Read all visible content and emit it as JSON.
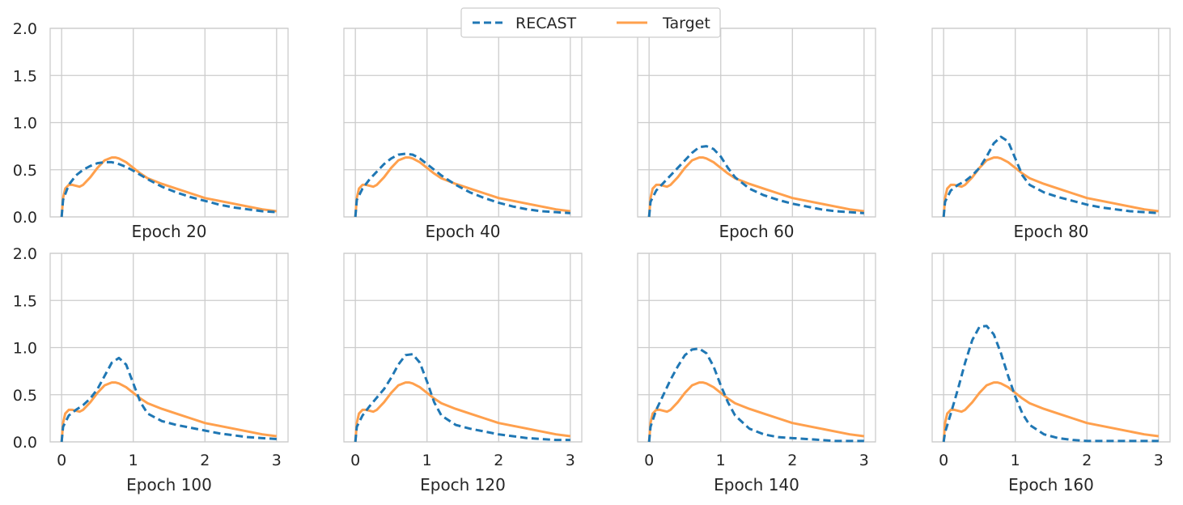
{
  "colors": {
    "recast": "#1f77b4",
    "target": "#ffa04d",
    "grid": "#cccccc",
    "axis_text": "#262626"
  },
  "legend": {
    "items": [
      "RECAST",
      "Target"
    ],
    "placement": "top-center"
  },
  "chart_data": [
    {
      "type": "line",
      "title": "Epoch 20",
      "xlim": [
        0,
        3
      ],
      "ylim": [
        0,
        2
      ],
      "xticks": [
        "0",
        "1",
        "2",
        "3"
      ],
      "yticks": [
        "0.0",
        "0.5",
        "1.0",
        "1.5",
        "2.0"
      ],
      "series": [
        {
          "name": "RECAST",
          "x": [
            0,
            0.02,
            0.1,
            0.2,
            0.3,
            0.4,
            0.5,
            0.6,
            0.7,
            0.8,
            0.9,
            1.0,
            1.2,
            1.4,
            1.6,
            1.8,
            2.0,
            2.2,
            2.4,
            2.6,
            2.8,
            3.0
          ],
          "y": [
            0,
            0.18,
            0.34,
            0.44,
            0.5,
            0.54,
            0.57,
            0.58,
            0.58,
            0.56,
            0.53,
            0.49,
            0.4,
            0.32,
            0.26,
            0.21,
            0.17,
            0.13,
            0.1,
            0.08,
            0.06,
            0.05
          ]
        },
        {
          "name": "Target",
          "x": [
            0,
            0.02,
            0.05,
            0.1,
            0.15,
            0.2,
            0.25,
            0.3,
            0.4,
            0.5,
            0.6,
            0.7,
            0.75,
            0.8,
            0.9,
            1.0,
            1.1,
            1.2,
            1.4,
            1.6,
            1.8,
            2.0,
            2.2,
            2.4,
            2.6,
            2.8,
            3.0
          ],
          "y": [
            0,
            0.2,
            0.3,
            0.34,
            0.34,
            0.33,
            0.32,
            0.34,
            0.42,
            0.52,
            0.6,
            0.63,
            0.63,
            0.62,
            0.58,
            0.52,
            0.46,
            0.41,
            0.35,
            0.3,
            0.25,
            0.2,
            0.17,
            0.14,
            0.11,
            0.08,
            0.06
          ]
        }
      ]
    },
    {
      "type": "line",
      "title": "Epoch 40",
      "xlim": [
        0,
        3
      ],
      "ylim": [
        0,
        2
      ],
      "xticks": [
        "0",
        "1",
        "2",
        "3"
      ],
      "yticks": [
        "0.0",
        "0.5",
        "1.0",
        "1.5",
        "2.0"
      ],
      "series": [
        {
          "name": "RECAST",
          "x": [
            0,
            0.02,
            0.1,
            0.2,
            0.3,
            0.4,
            0.5,
            0.6,
            0.7,
            0.8,
            0.9,
            1.0,
            1.2,
            1.4,
            1.6,
            1.8,
            2.0,
            2.2,
            2.4,
            2.6,
            2.8,
            3.0
          ],
          "y": [
            0,
            0.18,
            0.3,
            0.4,
            0.48,
            0.56,
            0.62,
            0.66,
            0.67,
            0.66,
            0.62,
            0.56,
            0.44,
            0.34,
            0.26,
            0.2,
            0.15,
            0.11,
            0.08,
            0.06,
            0.05,
            0.04
          ]
        },
        {
          "name": "Target",
          "x": [
            0,
            0.02,
            0.05,
            0.1,
            0.15,
            0.2,
            0.25,
            0.3,
            0.4,
            0.5,
            0.6,
            0.7,
            0.75,
            0.8,
            0.9,
            1.0,
            1.1,
            1.2,
            1.4,
            1.6,
            1.8,
            2.0,
            2.2,
            2.4,
            2.6,
            2.8,
            3.0
          ],
          "y": [
            0,
            0.2,
            0.3,
            0.34,
            0.34,
            0.33,
            0.32,
            0.34,
            0.42,
            0.52,
            0.6,
            0.63,
            0.63,
            0.62,
            0.58,
            0.52,
            0.46,
            0.41,
            0.35,
            0.3,
            0.25,
            0.2,
            0.17,
            0.14,
            0.11,
            0.08,
            0.06
          ]
        }
      ]
    },
    {
      "type": "line",
      "title": "Epoch 60",
      "xlim": [
        0,
        3
      ],
      "ylim": [
        0,
        2
      ],
      "xticks": [
        "0",
        "1",
        "2",
        "3"
      ],
      "yticks": [
        "0.0",
        "0.5",
        "1.0",
        "1.5",
        "2.0"
      ],
      "series": [
        {
          "name": "RECAST",
          "x": [
            0,
            0.02,
            0.1,
            0.2,
            0.3,
            0.4,
            0.5,
            0.6,
            0.7,
            0.8,
            0.9,
            1.0,
            1.1,
            1.2,
            1.4,
            1.6,
            1.8,
            2.0,
            2.2,
            2.4,
            2.6,
            2.8,
            3.0
          ],
          "y": [
            0,
            0.16,
            0.28,
            0.36,
            0.44,
            0.52,
            0.6,
            0.68,
            0.74,
            0.75,
            0.72,
            0.64,
            0.52,
            0.42,
            0.3,
            0.23,
            0.18,
            0.14,
            0.11,
            0.08,
            0.06,
            0.05,
            0.04
          ]
        },
        {
          "name": "Target",
          "x": [
            0,
            0.02,
            0.05,
            0.1,
            0.15,
            0.2,
            0.25,
            0.3,
            0.4,
            0.5,
            0.6,
            0.7,
            0.75,
            0.8,
            0.9,
            1.0,
            1.1,
            1.2,
            1.4,
            1.6,
            1.8,
            2.0,
            2.2,
            2.4,
            2.6,
            2.8,
            3.0
          ],
          "y": [
            0,
            0.2,
            0.3,
            0.34,
            0.34,
            0.33,
            0.32,
            0.34,
            0.42,
            0.52,
            0.6,
            0.63,
            0.63,
            0.62,
            0.58,
            0.52,
            0.46,
            0.41,
            0.35,
            0.3,
            0.25,
            0.2,
            0.17,
            0.14,
            0.11,
            0.08,
            0.06
          ]
        }
      ]
    },
    {
      "type": "line",
      "title": "Epoch 80",
      "xlim": [
        0,
        3
      ],
      "ylim": [
        0,
        2
      ],
      "xticks": [
        "0",
        "1",
        "2",
        "3"
      ],
      "yticks": [
        "0.0",
        "0.5",
        "1.0",
        "1.5",
        "2.0"
      ],
      "series": [
        {
          "name": "RECAST",
          "x": [
            0,
            0.02,
            0.1,
            0.2,
            0.3,
            0.4,
            0.5,
            0.6,
            0.7,
            0.8,
            0.9,
            1.0,
            1.1,
            1.2,
            1.4,
            1.6,
            1.8,
            2.0,
            2.2,
            2.4,
            2.6,
            2.8,
            3.0
          ],
          "y": [
            0,
            0.16,
            0.28,
            0.34,
            0.38,
            0.44,
            0.52,
            0.64,
            0.78,
            0.85,
            0.8,
            0.62,
            0.44,
            0.34,
            0.26,
            0.21,
            0.17,
            0.13,
            0.1,
            0.08,
            0.06,
            0.05,
            0.04
          ]
        },
        {
          "name": "Target",
          "x": [
            0,
            0.02,
            0.05,
            0.1,
            0.15,
            0.2,
            0.25,
            0.3,
            0.4,
            0.5,
            0.6,
            0.7,
            0.75,
            0.8,
            0.9,
            1.0,
            1.1,
            1.2,
            1.4,
            1.6,
            1.8,
            2.0,
            2.2,
            2.4,
            2.6,
            2.8,
            3.0
          ],
          "y": [
            0,
            0.2,
            0.3,
            0.34,
            0.34,
            0.33,
            0.32,
            0.34,
            0.42,
            0.52,
            0.6,
            0.63,
            0.63,
            0.62,
            0.58,
            0.52,
            0.46,
            0.41,
            0.35,
            0.3,
            0.25,
            0.2,
            0.17,
            0.14,
            0.11,
            0.08,
            0.06
          ]
        }
      ]
    },
    {
      "type": "line",
      "title": "Epoch 100",
      "xlim": [
        0,
        3
      ],
      "ylim": [
        0,
        2
      ],
      "xticks": [
        "0",
        "1",
        "2",
        "3"
      ],
      "yticks": [
        "0.0",
        "0.5",
        "1.0",
        "1.5",
        "2.0"
      ],
      "series": [
        {
          "name": "RECAST",
          "x": [
            0,
            0.02,
            0.1,
            0.2,
            0.3,
            0.4,
            0.5,
            0.6,
            0.7,
            0.8,
            0.9,
            1.0,
            1.1,
            1.2,
            1.4,
            1.6,
            1.8,
            2.0,
            2.2,
            2.4,
            2.6,
            2.8,
            3.0
          ],
          "y": [
            0,
            0.16,
            0.28,
            0.34,
            0.39,
            0.46,
            0.56,
            0.7,
            0.84,
            0.89,
            0.82,
            0.62,
            0.42,
            0.3,
            0.22,
            0.18,
            0.15,
            0.12,
            0.09,
            0.07,
            0.05,
            0.04,
            0.03
          ]
        },
        {
          "name": "Target",
          "x": [
            0,
            0.02,
            0.05,
            0.1,
            0.15,
            0.2,
            0.25,
            0.3,
            0.4,
            0.5,
            0.6,
            0.7,
            0.75,
            0.8,
            0.9,
            1.0,
            1.1,
            1.2,
            1.4,
            1.6,
            1.8,
            2.0,
            2.2,
            2.4,
            2.6,
            2.8,
            3.0
          ],
          "y": [
            0,
            0.2,
            0.3,
            0.34,
            0.34,
            0.33,
            0.32,
            0.34,
            0.42,
            0.52,
            0.6,
            0.63,
            0.63,
            0.62,
            0.58,
            0.52,
            0.46,
            0.41,
            0.35,
            0.3,
            0.25,
            0.2,
            0.17,
            0.14,
            0.11,
            0.08,
            0.06
          ]
        }
      ]
    },
    {
      "type": "line",
      "title": "Epoch 120",
      "xlim": [
        0,
        3
      ],
      "ylim": [
        0,
        2
      ],
      "xticks": [
        "0",
        "1",
        "2",
        "3"
      ],
      "yticks": [
        "0.0",
        "0.5",
        "1.0",
        "1.5",
        "2.0"
      ],
      "series": [
        {
          "name": "RECAST",
          "x": [
            0,
            0.02,
            0.1,
            0.2,
            0.3,
            0.4,
            0.5,
            0.6,
            0.7,
            0.8,
            0.9,
            1.0,
            1.1,
            1.2,
            1.4,
            1.6,
            1.8,
            2.0,
            2.2,
            2.4,
            2.6,
            2.8,
            3.0
          ],
          "y": [
            0,
            0.16,
            0.28,
            0.38,
            0.47,
            0.56,
            0.68,
            0.82,
            0.92,
            0.93,
            0.84,
            0.64,
            0.42,
            0.28,
            0.18,
            0.14,
            0.11,
            0.08,
            0.06,
            0.04,
            0.03,
            0.02,
            0.02
          ]
        },
        {
          "name": "Target",
          "x": [
            0,
            0.02,
            0.05,
            0.1,
            0.15,
            0.2,
            0.25,
            0.3,
            0.4,
            0.5,
            0.6,
            0.7,
            0.75,
            0.8,
            0.9,
            1.0,
            1.1,
            1.2,
            1.4,
            1.6,
            1.8,
            2.0,
            2.2,
            2.4,
            2.6,
            2.8,
            3.0
          ],
          "y": [
            0,
            0.2,
            0.3,
            0.34,
            0.34,
            0.33,
            0.32,
            0.34,
            0.42,
            0.52,
            0.6,
            0.63,
            0.63,
            0.62,
            0.58,
            0.52,
            0.46,
            0.41,
            0.35,
            0.3,
            0.25,
            0.2,
            0.17,
            0.14,
            0.11,
            0.08,
            0.06
          ]
        }
      ]
    },
    {
      "type": "line",
      "title": "Epoch 140",
      "xlim": [
        0,
        3
      ],
      "ylim": [
        0,
        2
      ],
      "xticks": [
        "0",
        "1",
        "2",
        "3"
      ],
      "yticks": [
        "0.0",
        "0.5",
        "1.0",
        "1.5",
        "2.0"
      ],
      "series": [
        {
          "name": "RECAST",
          "x": [
            0,
            0.02,
            0.1,
            0.2,
            0.3,
            0.4,
            0.5,
            0.6,
            0.7,
            0.8,
            0.9,
            1.0,
            1.1,
            1.2,
            1.4,
            1.6,
            1.8,
            2.0,
            2.2,
            2.4,
            2.6,
            2.8,
            3.0
          ],
          "y": [
            0,
            0.16,
            0.34,
            0.5,
            0.66,
            0.8,
            0.92,
            0.98,
            0.99,
            0.94,
            0.8,
            0.6,
            0.42,
            0.28,
            0.14,
            0.08,
            0.05,
            0.04,
            0.03,
            0.02,
            0.01,
            0.01,
            0.01
          ]
        },
        {
          "name": "Target",
          "x": [
            0,
            0.02,
            0.05,
            0.1,
            0.15,
            0.2,
            0.25,
            0.3,
            0.4,
            0.5,
            0.6,
            0.7,
            0.75,
            0.8,
            0.9,
            1.0,
            1.1,
            1.2,
            1.4,
            1.6,
            1.8,
            2.0,
            2.2,
            2.4,
            2.6,
            2.8,
            3.0
          ],
          "y": [
            0,
            0.2,
            0.3,
            0.34,
            0.34,
            0.33,
            0.32,
            0.34,
            0.42,
            0.52,
            0.6,
            0.63,
            0.63,
            0.62,
            0.58,
            0.52,
            0.46,
            0.41,
            0.35,
            0.3,
            0.25,
            0.2,
            0.17,
            0.14,
            0.11,
            0.08,
            0.06
          ]
        }
      ]
    },
    {
      "type": "line",
      "title": "Epoch 160",
      "xlim": [
        0,
        3
      ],
      "ylim": [
        0,
        2
      ],
      "xticks": [
        "0",
        "1",
        "2",
        "3"
      ],
      "yticks": [
        "0.0",
        "0.5",
        "1.0",
        "1.5",
        "2.0"
      ],
      "series": [
        {
          "name": "RECAST",
          "x": [
            0,
            0.02,
            0.1,
            0.2,
            0.3,
            0.4,
            0.5,
            0.6,
            0.7,
            0.8,
            0.9,
            1.0,
            1.1,
            1.2,
            1.4,
            1.6,
            1.8,
            2.0,
            2.2,
            2.4,
            2.6,
            2.8,
            3.0
          ],
          "y": [
            0,
            0.1,
            0.3,
            0.56,
            0.84,
            1.08,
            1.22,
            1.23,
            1.14,
            0.94,
            0.7,
            0.48,
            0.3,
            0.18,
            0.08,
            0.04,
            0.02,
            0.01,
            0.01,
            0.01,
            0.01,
            0.01,
            0.01
          ]
        },
        {
          "name": "Target",
          "x": [
            0,
            0.02,
            0.05,
            0.1,
            0.15,
            0.2,
            0.25,
            0.3,
            0.4,
            0.5,
            0.6,
            0.7,
            0.75,
            0.8,
            0.9,
            1.0,
            1.1,
            1.2,
            1.4,
            1.6,
            1.8,
            2.0,
            2.2,
            2.4,
            2.6,
            2.8,
            3.0
          ],
          "y": [
            0,
            0.2,
            0.3,
            0.34,
            0.34,
            0.33,
            0.32,
            0.34,
            0.42,
            0.52,
            0.6,
            0.63,
            0.63,
            0.62,
            0.58,
            0.52,
            0.46,
            0.41,
            0.35,
            0.3,
            0.25,
            0.2,
            0.17,
            0.14,
            0.11,
            0.08,
            0.06
          ]
        }
      ]
    }
  ]
}
